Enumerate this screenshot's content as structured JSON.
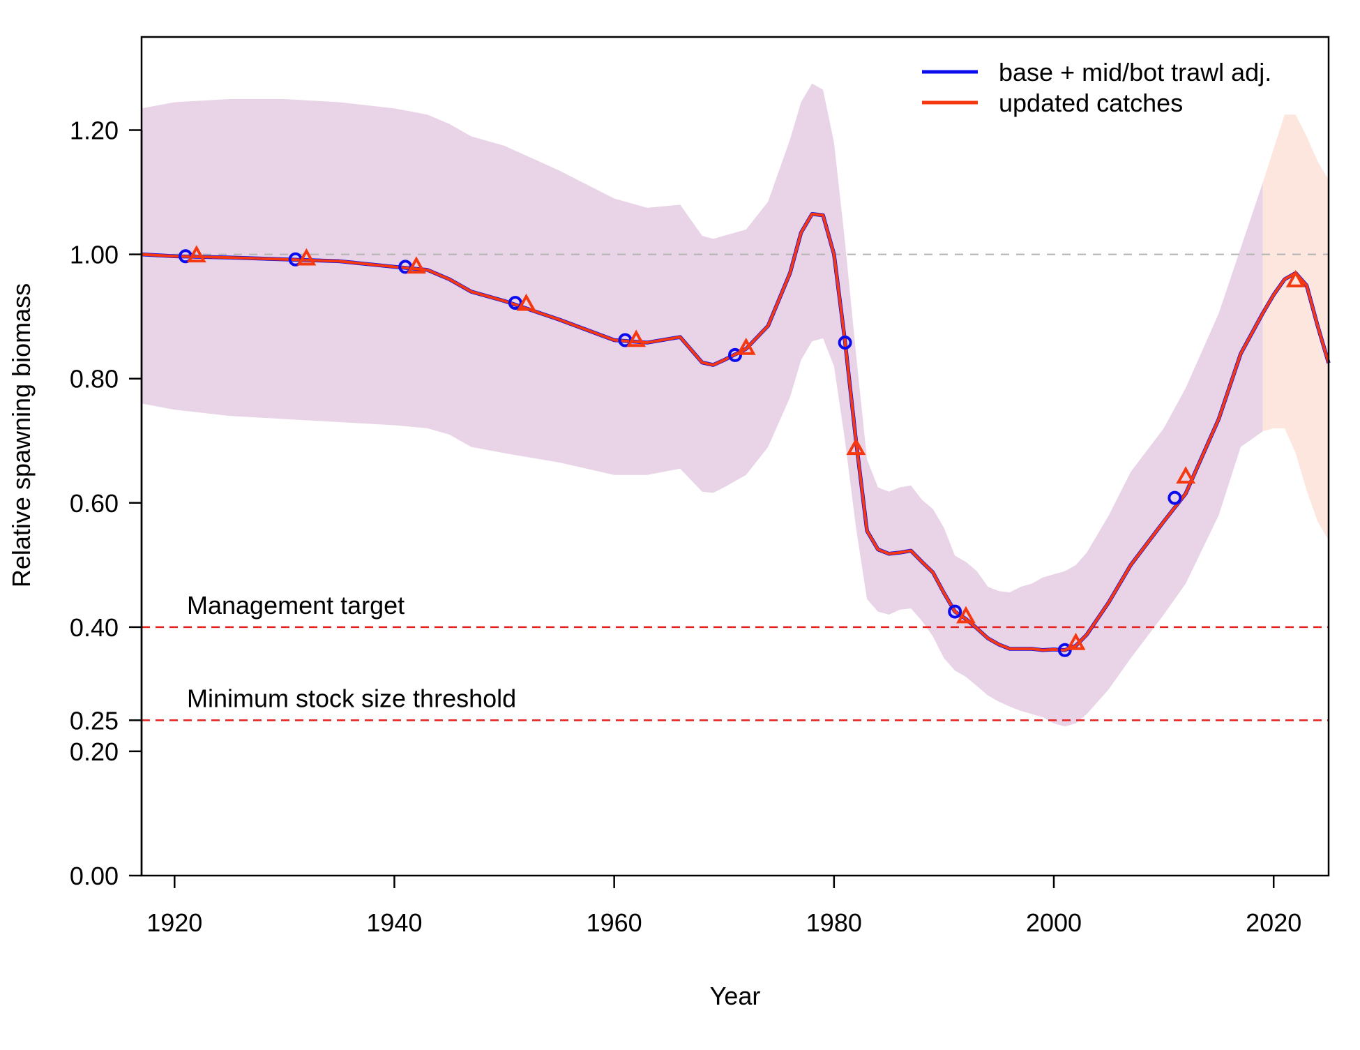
{
  "chart_data": {
    "type": "line",
    "title": "",
    "xlabel": "Year",
    "ylabel": "Relative spawning biomass",
    "xlim": [
      1917,
      2025
    ],
    "ylim": [
      0,
      1.35
    ],
    "x_ticks": [
      1920,
      1940,
      1960,
      1980,
      2000,
      2020
    ],
    "x_tick_labels": [
      "1920",
      "1940",
      "1960",
      "1980",
      "2000",
      "2020"
    ],
    "y_ticks": [
      0,
      0.2,
      0.25,
      0.4,
      0.6,
      0.8,
      1.0,
      1.2
    ],
    "y_tick_labels": [
      "0.00",
      "0.20",
      "0.25",
      "0.40",
      "0.60",
      "0.80",
      "1.00",
      "1.20"
    ],
    "grid": false,
    "legend_position": "top-right",
    "reference_lines": [
      {
        "y": 1.0,
        "label": "",
        "color": "#b3b3b3"
      },
      {
        "y": 0.4,
        "label": "Management target",
        "color": "#e8201c"
      },
      {
        "y": 0.25,
        "label": "Minimum stock size threshold",
        "color": "#e8201c"
      }
    ],
    "x": [
      1917,
      1920,
      1925,
      1930,
      1935,
      1940,
      1943,
      1945,
      1947,
      1950,
      1955,
      1960,
      1963,
      1966,
      1968,
      1969,
      1970,
      1972,
      1974,
      1976,
      1977,
      1978,
      1979,
      1980,
      1981,
      1982,
      1983,
      1984,
      1985,
      1986,
      1987,
      1988,
      1989,
      1990,
      1991,
      1992,
      1993,
      1994,
      1995,
      1996,
      1997,
      1998,
      1999,
      2000,
      2001,
      2002,
      2003,
      2005,
      2007,
      2010,
      2012,
      2015,
      2017,
      2019,
      2020,
      2021,
      2022,
      2023,
      2024,
      2025
    ],
    "series": [
      {
        "name": "base + mid/bot trawl adj.",
        "color": "#0b0bf0",
        "marker": "circle",
        "values": [
          1.0,
          0.997,
          0.995,
          0.992,
          0.989,
          0.98,
          0.975,
          0.96,
          0.94,
          0.925,
          0.895,
          0.862,
          0.858,
          0.867,
          0.826,
          0.822,
          0.83,
          0.848,
          0.885,
          0.97,
          1.035,
          1.065,
          1.063,
          1.0,
          0.86,
          0.7,
          0.555,
          0.525,
          0.518,
          0.52,
          0.523,
          0.505,
          0.488,
          0.455,
          0.425,
          0.413,
          0.398,
          0.382,
          0.372,
          0.365,
          0.365,
          0.365,
          0.363,
          0.364,
          0.363,
          0.37,
          0.388,
          0.44,
          0.5,
          0.57,
          0.615,
          0.735,
          0.84,
          0.905,
          0.935,
          0.96,
          0.97,
          0.95,
          0.885,
          0.825
        ],
        "marker_x": [
          1921,
          1931,
          1941,
          1951,
          1961,
          1971,
          1981,
          1991,
          2001,
          2011
        ],
        "marker_y": [
          0.997,
          0.992,
          0.98,
          0.922,
          0.862,
          0.838,
          0.858,
          0.425,
          0.363,
          0.608
        ]
      },
      {
        "name": "updated catches",
        "color": "#f5380f",
        "marker": "triangle",
        "values": [
          1.0,
          0.997,
          0.995,
          0.992,
          0.989,
          0.98,
          0.975,
          0.96,
          0.94,
          0.925,
          0.895,
          0.862,
          0.858,
          0.867,
          0.826,
          0.822,
          0.83,
          0.848,
          0.885,
          0.97,
          1.035,
          1.065,
          1.063,
          1.0,
          0.86,
          0.7,
          0.555,
          0.525,
          0.518,
          0.52,
          0.523,
          0.505,
          0.488,
          0.455,
          0.425,
          0.413,
          0.398,
          0.382,
          0.372,
          0.365,
          0.365,
          0.365,
          0.363,
          0.364,
          0.363,
          0.37,
          0.388,
          0.44,
          0.5,
          0.57,
          0.615,
          0.735,
          0.84,
          0.905,
          0.935,
          0.96,
          0.97,
          0.95,
          0.885,
          0.825
        ],
        "marker_x": [
          1922,
          1932,
          1942,
          1952,
          1962,
          1972,
          1982,
          1992,
          2002,
          2012,
          2022
        ],
        "marker_y": [
          0.998,
          0.993,
          0.98,
          0.92,
          0.862,
          0.849,
          0.688,
          0.417,
          0.374,
          0.642,
          0.958
        ]
      }
    ],
    "uncertainty_band": {
      "color": "#e8d4e6",
      "x": [
        1917,
        1920,
        1925,
        1930,
        1935,
        1940,
        1943,
        1945,
        1947,
        1950,
        1955,
        1960,
        1963,
        1966,
        1968,
        1969,
        1970,
        1972,
        1974,
        1976,
        1977,
        1978,
        1979,
        1980,
        1981,
        1982,
        1983,
        1984,
        1985,
        1986,
        1987,
        1988,
        1989,
        1990,
        1991,
        1992,
        1993,
        1994,
        1995,
        1996,
        1997,
        1998,
        1999,
        2000,
        2001,
        2002,
        2003,
        2005,
        2007,
        2010,
        2012,
        2015,
        2017,
        2019
      ],
      "lower": [
        0.76,
        0.75,
        0.74,
        0.735,
        0.73,
        0.725,
        0.72,
        0.71,
        0.69,
        0.68,
        0.665,
        0.645,
        0.645,
        0.655,
        0.618,
        0.616,
        0.625,
        0.645,
        0.69,
        0.77,
        0.83,
        0.86,
        0.865,
        0.82,
        0.7,
        0.56,
        0.445,
        0.425,
        0.42,
        0.428,
        0.43,
        0.41,
        0.385,
        0.35,
        0.33,
        0.32,
        0.305,
        0.29,
        0.28,
        0.272,
        0.265,
        0.26,
        0.255,
        0.245,
        0.24,
        0.245,
        0.26,
        0.3,
        0.35,
        0.42,
        0.47,
        0.58,
        0.69,
        0.715
      ],
      "upper": [
        1.235,
        1.245,
        1.25,
        1.25,
        1.245,
        1.235,
        1.225,
        1.21,
        1.19,
        1.175,
        1.135,
        1.09,
        1.075,
        1.08,
        1.03,
        1.025,
        1.03,
        1.04,
        1.085,
        1.185,
        1.245,
        1.275,
        1.265,
        1.18,
        1.02,
        0.84,
        0.67,
        0.625,
        0.618,
        0.625,
        0.628,
        0.605,
        0.59,
        0.56,
        0.515,
        0.505,
        0.49,
        0.465,
        0.458,
        0.456,
        0.465,
        0.47,
        0.48,
        0.485,
        0.49,
        0.5,
        0.52,
        0.58,
        0.65,
        0.72,
        0.785,
        0.905,
        1.01,
        1.115
      ]
    },
    "forecast_band": {
      "color": "#fde6de",
      "x": [
        2019,
        2020,
        2021,
        2022,
        2023,
        2024,
        2025
      ],
      "lower": [
        0.715,
        0.72,
        0.72,
        0.68,
        0.62,
        0.57,
        0.54
      ],
      "upper": [
        1.115,
        1.17,
        1.225,
        1.225,
        1.19,
        1.15,
        1.12
      ]
    }
  }
}
